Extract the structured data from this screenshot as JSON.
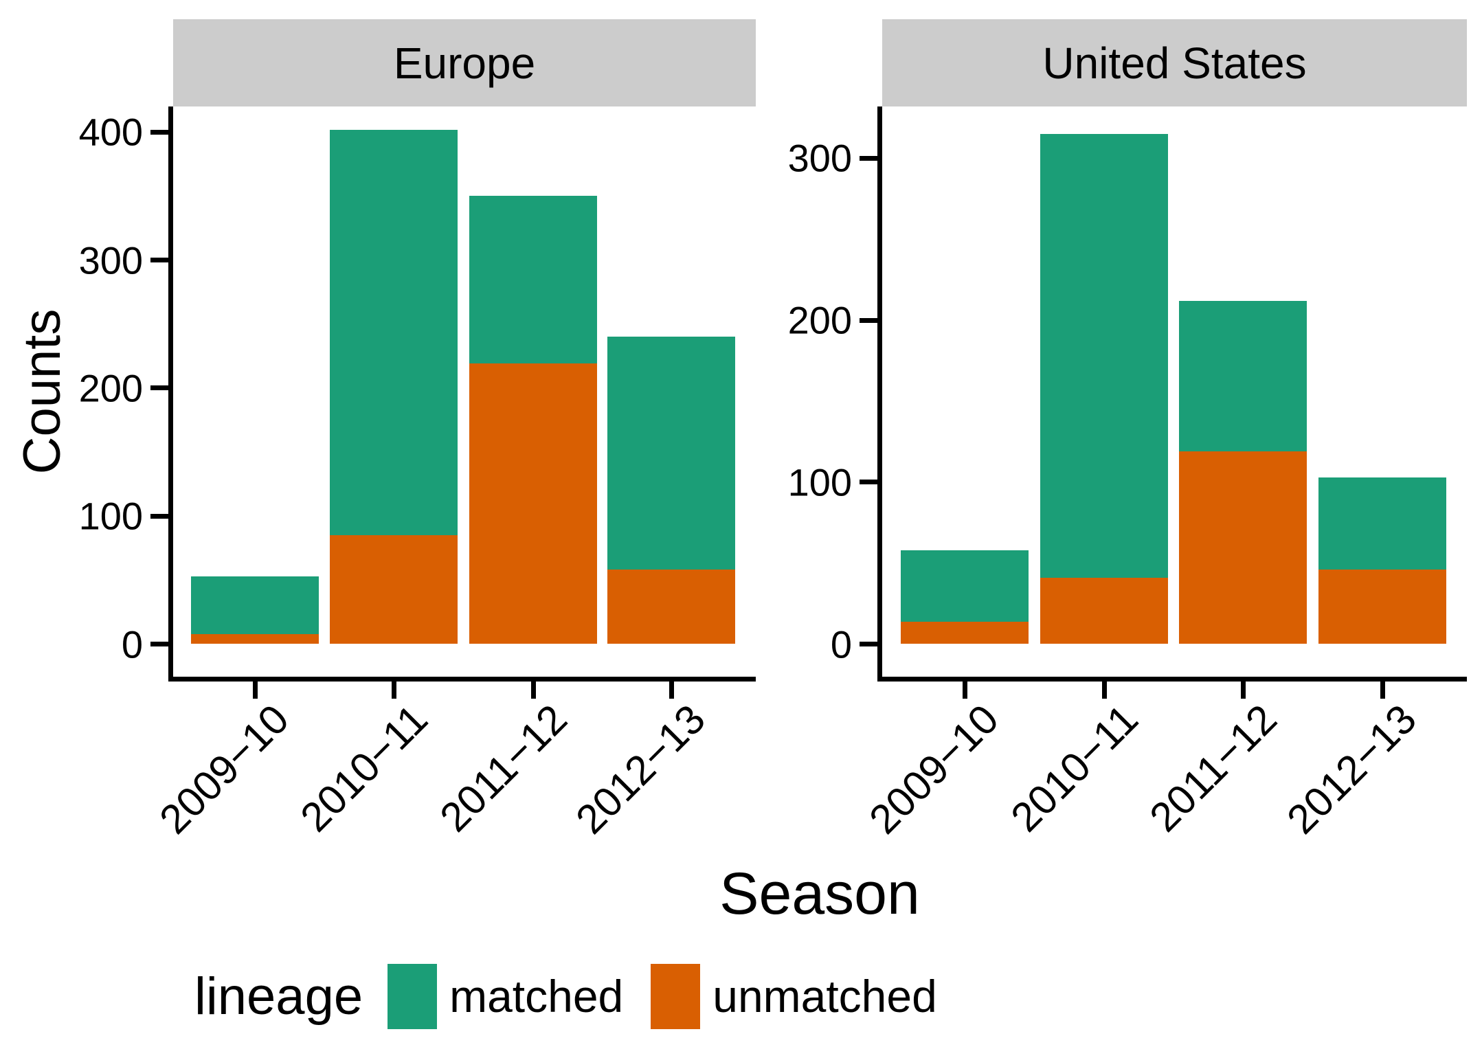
{
  "figure": {
    "y_axis_title": "Counts",
    "x_axis_title": "Season",
    "legend": {
      "title": "lineage",
      "items": [
        {
          "label": "matched",
          "color": "#1B9E77"
        },
        {
          "label": "unmatched",
          "color": "#D95F02"
        }
      ]
    },
    "colors": {
      "matched": "#1B9E77",
      "unmatched": "#D95F02",
      "strip_background": "#CCCCCC",
      "axis": "#000000",
      "background": "#FFFFFF"
    }
  },
  "chart_data": {
    "type": "bar",
    "stacked": true,
    "stack_order_bottom_to_top": [
      "unmatched",
      "matched"
    ],
    "title": "",
    "xlabel": "Season",
    "ylabel": "Counts",
    "legend_title": "lineage",
    "legend_position": "bottom",
    "grid": false,
    "categories": [
      "2009−10",
      "2010−11",
      "2011−12",
      "2012−13"
    ],
    "facets": [
      {
        "label": "Europe",
        "y_ticks": [
          0,
          100,
          200,
          300,
          400
        ],
        "ylim": [
          0,
          420
        ],
        "series": [
          {
            "name": "matched",
            "values": [
              45,
              317,
              131,
              182
            ]
          },
          {
            "name": "unmatched",
            "values": [
              8,
              85,
              219,
              58
            ]
          }
        ],
        "totals": [
          53,
          402,
          350,
          240
        ]
      },
      {
        "label": "United States",
        "y_ticks": [
          0,
          100,
          200,
          300
        ],
        "ylim": [
          0,
          332
        ],
        "series": [
          {
            "name": "matched",
            "values": [
              44,
              274,
              93,
              57
            ]
          },
          {
            "name": "unmatched",
            "values": [
              14,
              41,
              119,
              46
            ]
          }
        ],
        "totals": [
          58,
          315,
          212,
          103
        ]
      }
    ]
  }
}
